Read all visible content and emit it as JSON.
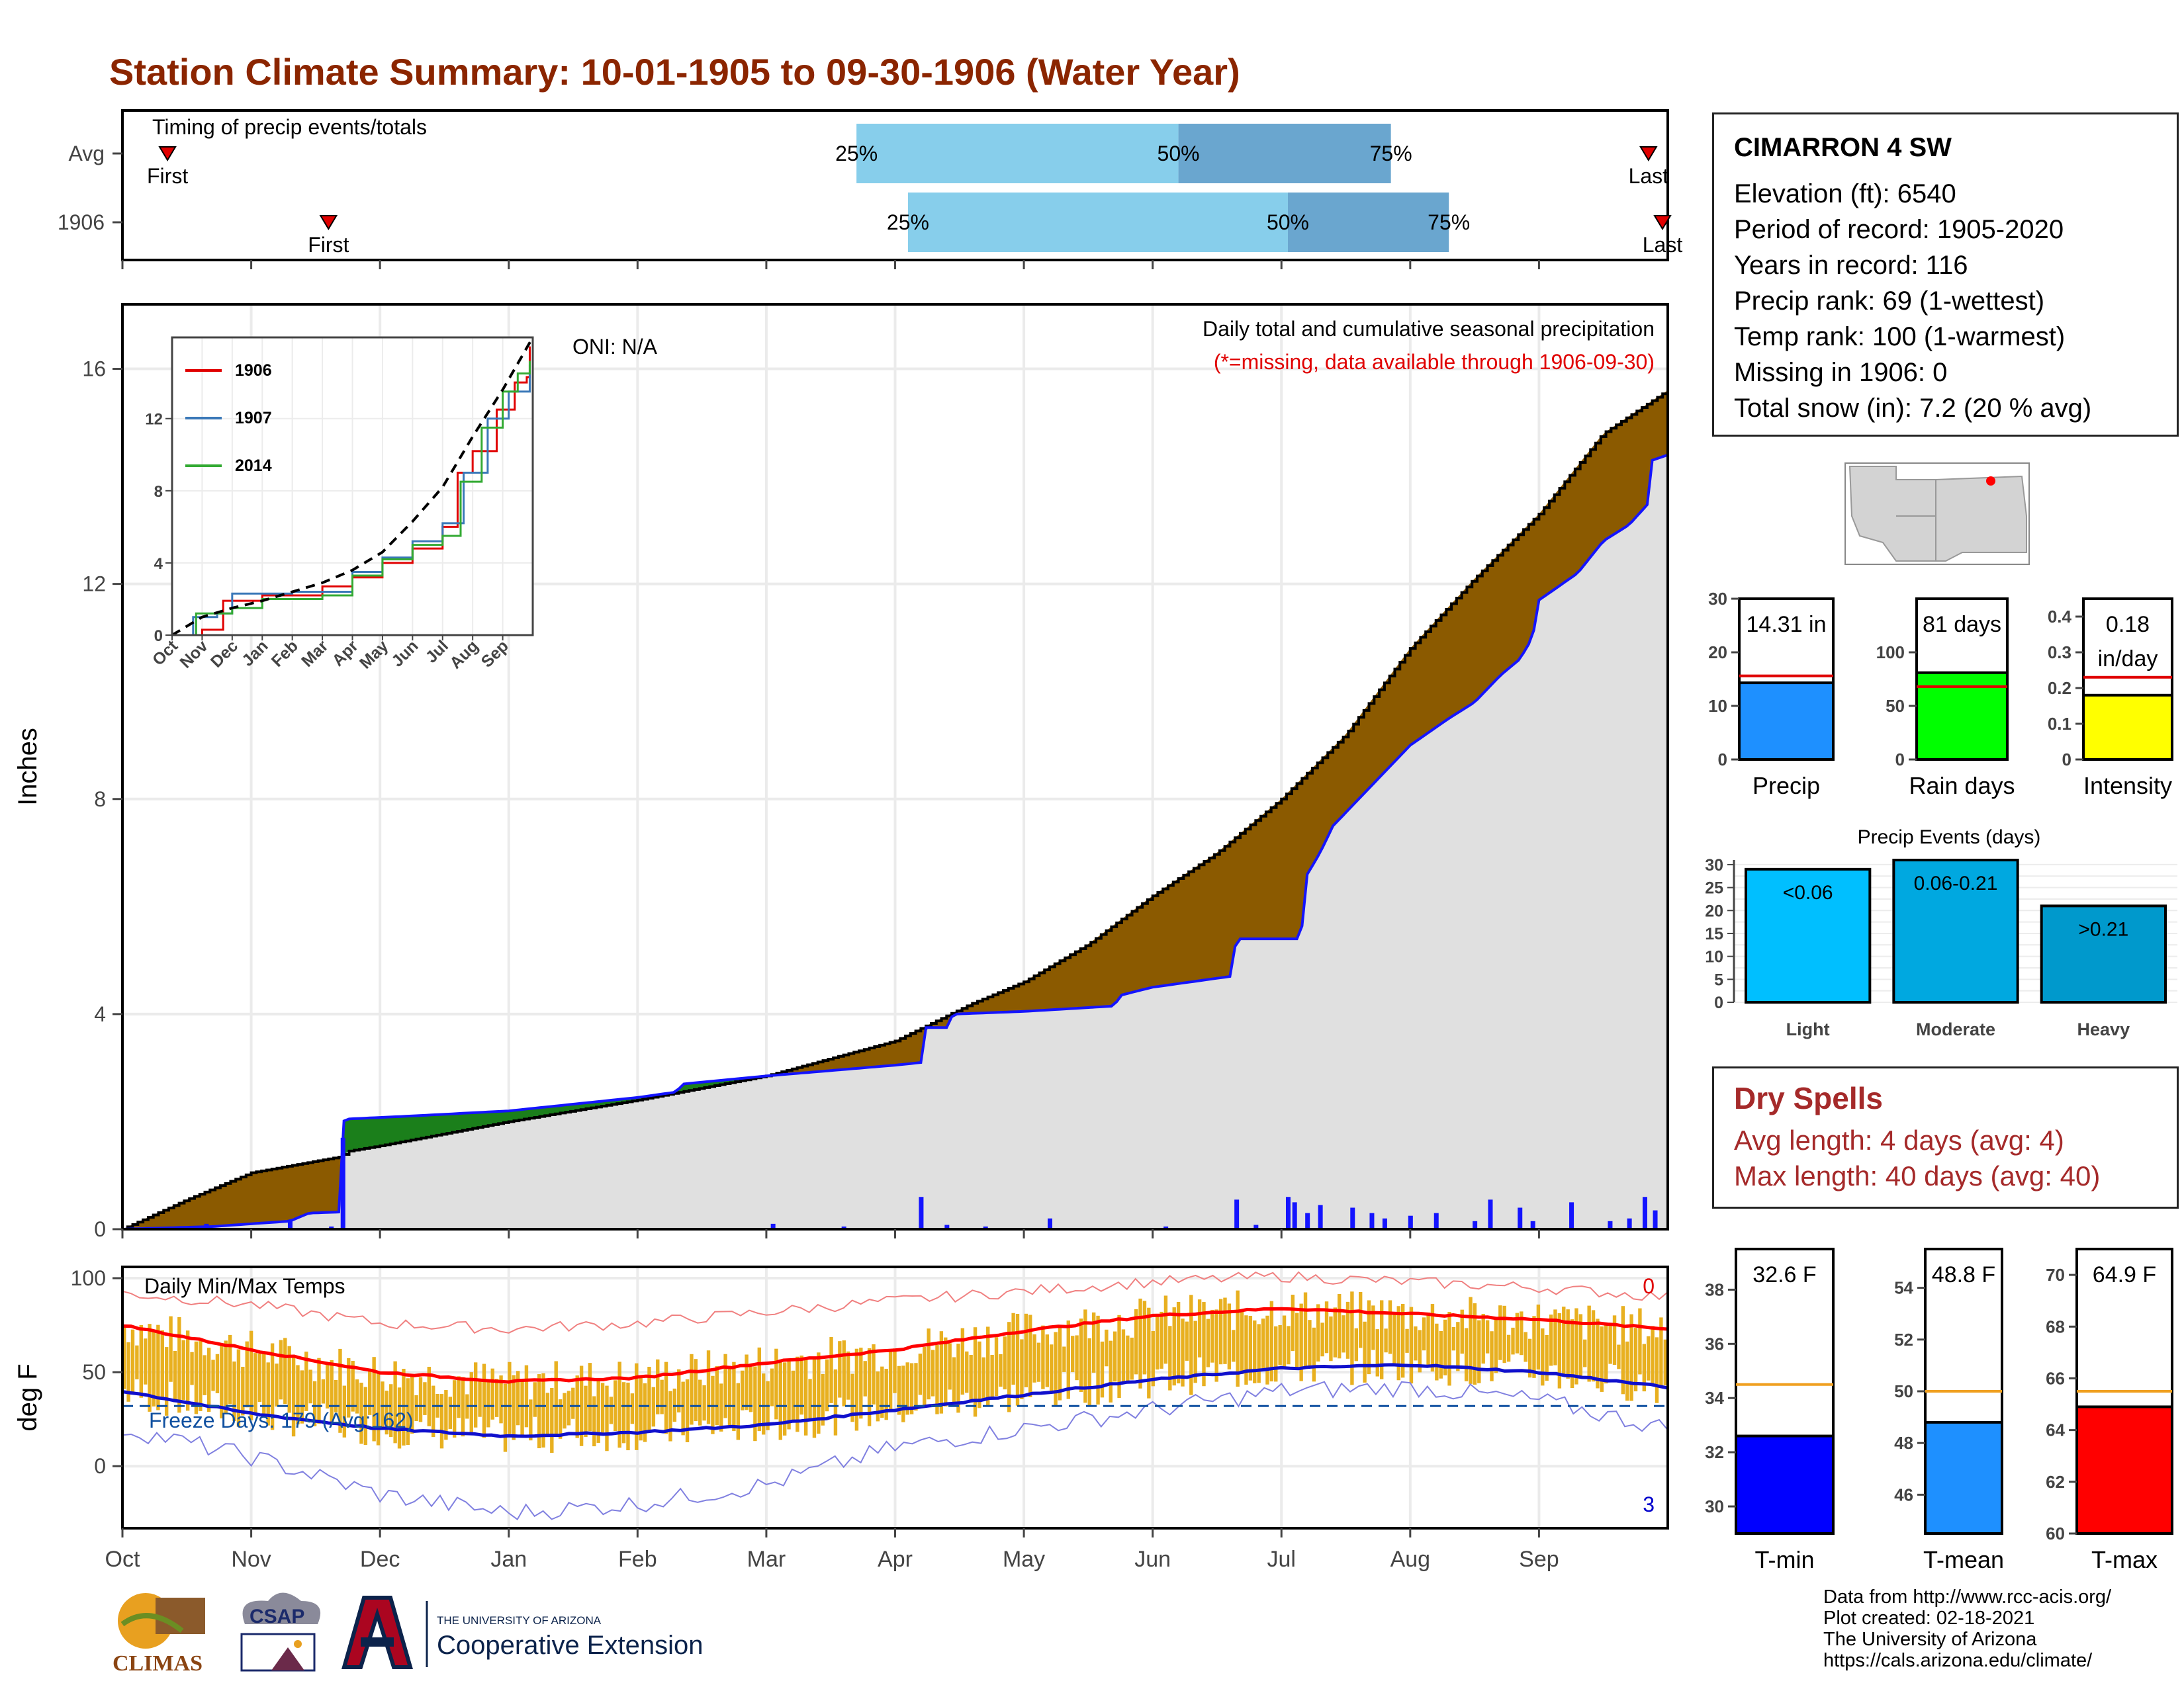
{
  "page_title": "Station Climate Summary: 10-01-1905 to 09-30-1906 (Water Year)",
  "colors": {
    "title": "#8b2500",
    "cumulative_fill": "#8b5a00",
    "normal_fill": "#e0e0e0",
    "deficit_fill": "#1b7f1b",
    "daily_bars": "#1414ff",
    "avg_line": "#e00000",
    "timing_light": "#87ceeb",
    "timing_dark": "#6aa6cf",
    "temp_bars": "#e8b020",
    "max_mean_line": "#ff0000",
    "min_mean_line": "#1010cc",
    "dry_spells": "#a52a2a",
    "avg_reference": "#f0a020"
  },
  "station": {
    "name": "CIMARRON 4 SW",
    "rows": [
      "Elevation (ft): 6540",
      "Period of record: 1905-2020",
      "Years in record: 116",
      "Precip rank: 69 (1-wettest)",
      "Temp rank: 100 (1-warmest)",
      "Missing in 1906: 0",
      "Total snow (in): 7.2 (20 % avg)"
    ]
  },
  "dry_spells": {
    "title": "Dry Spells",
    "avg_length": "Avg length: 4 days (avg: 4)",
    "max_length": "Max length: 40 days (avg: 40)"
  },
  "credits": [
    "Data from http://www.rcc-acis.org/",
    "Plot created: 02-18-2021",
    "The University of Arizona",
    "https://cals.arizona.edu/climate/"
  ],
  "logos": {
    "climas": "CLIMAS",
    "csap": "CSAP",
    "ua_line1": "THE UNIVERSITY OF ARIZONA",
    "ua_line2": "Cooperative Extension"
  },
  "chart_data": [
    {
      "type": "bar",
      "title": "Timing of precip events/totals",
      "rows": [
        "Avg",
        "1906"
      ],
      "first_event_month": [
        0.35,
        1.6
      ],
      "last_event_month": [
        11.85,
        11.98
      ],
      "quantiles": [
        {
          "row": "Avg",
          "p25_month": 5.7,
          "p50_month": 8.2,
          "p75_month": 9.85
        },
        {
          "row": "1906",
          "p25_month": 6.1,
          "p50_month": 9.05,
          "p75_month": 10.3
        }
      ],
      "labels": {
        "first": "First",
        "last": "Last",
        "q25": "25%",
        "q50": "50%",
        "q75": "75%"
      }
    },
    {
      "type": "area",
      "title": "Daily total and cumulative seasonal precipitation",
      "subtitle": "(*=missing, data available through 1906-09-30)",
      "annotation": "ONI: N/A",
      "ylabel": "Inches",
      "ylim": [
        0,
        17.2
      ],
      "yticks": [
        0,
        4,
        8,
        12,
        16
      ],
      "months": [
        "Oct",
        "Nov",
        "Dec",
        "Jan",
        "Feb",
        "Mar",
        "Apr",
        "May",
        "Jun",
        "Jul",
        "Aug",
        "Sep"
      ],
      "avg_cumulative": [
        [
          0,
          0
        ],
        [
          0.5,
          0.55
        ],
        [
          1,
          1.05
        ],
        [
          1.7,
          1.35
        ],
        [
          1.75,
          1.45
        ],
        [
          2,
          1.55
        ],
        [
          3,
          2.0
        ],
        [
          4,
          2.4
        ],
        [
          5,
          2.85
        ],
        [
          6,
          3.5
        ],
        [
          6.6,
          4.2
        ],
        [
          7,
          4.6
        ],
        [
          7.5,
          5.3
        ],
        [
          8,
          6.2
        ],
        [
          8.5,
          7.0
        ],
        [
          9,
          8.0
        ],
        [
          9.5,
          9.2
        ],
        [
          10,
          10.8
        ],
        [
          10.5,
          12.1
        ],
        [
          11,
          13.3
        ],
        [
          11.5,
          14.8
        ],
        [
          12,
          15.6
        ]
      ],
      "year_cumulative": [
        [
          0,
          0
        ],
        [
          0.7,
          0.05
        ],
        [
          1.3,
          0.15
        ],
        [
          1.45,
          0.3
        ],
        [
          1.7,
          0.32
        ],
        [
          1.71,
          2.0
        ],
        [
          1.75,
          2.05
        ],
        [
          2.2,
          2.1
        ],
        [
          3,
          2.2
        ],
        [
          4,
          2.45
        ],
        [
          4.3,
          2.55
        ],
        [
          4.35,
          2.7
        ],
        [
          5,
          2.85
        ],
        [
          6,
          3.05
        ],
        [
          6.2,
          3.1
        ],
        [
          6.22,
          3.75
        ],
        [
          6.4,
          3.75
        ],
        [
          6.45,
          4.0
        ],
        [
          7,
          4.05
        ],
        [
          7.7,
          4.15
        ],
        [
          7.75,
          4.35
        ],
        [
          8,
          4.5
        ],
        [
          8.6,
          4.7
        ],
        [
          8.65,
          5.4
        ],
        [
          9,
          5.4
        ],
        [
          9.15,
          5.4
        ],
        [
          9.2,
          6.6
        ],
        [
          9.3,
          7.0
        ],
        [
          9.4,
          7.5
        ],
        [
          9.6,
          8.0
        ],
        [
          9.8,
          8.5
        ],
        [
          10,
          9.0
        ],
        [
          10.3,
          9.5
        ],
        [
          10.5,
          9.8
        ],
        [
          10.7,
          10.3
        ],
        [
          10.85,
          10.6
        ],
        [
          10.95,
          11.0
        ],
        [
          11,
          11.7
        ],
        [
          11.3,
          12.2
        ],
        [
          11.5,
          12.8
        ],
        [
          11.7,
          13.1
        ],
        [
          11.85,
          13.5
        ],
        [
          11.88,
          14.3
        ],
        [
          12,
          14.4
        ]
      ],
      "daily_precip_events": [
        [
          0.65,
          0.1
        ],
        [
          1.3,
          0.15
        ],
        [
          1.62,
          0.05
        ],
        [
          1.71,
          1.7
        ],
        [
          5.05,
          0.1
        ],
        [
          5.6,
          0.05
        ],
        [
          6.2,
          0.6
        ],
        [
          6.4,
          0.08
        ],
        [
          6.7,
          0.05
        ],
        [
          7.2,
          0.2
        ],
        [
          8.1,
          0.05
        ],
        [
          8.65,
          0.55
        ],
        [
          8.8,
          0.08
        ],
        [
          9.05,
          0.6
        ],
        [
          9.1,
          0.5
        ],
        [
          9.2,
          0.3
        ],
        [
          9.3,
          0.45
        ],
        [
          9.55,
          0.4
        ],
        [
          9.7,
          0.3
        ],
        [
          9.8,
          0.2
        ],
        [
          10.0,
          0.25
        ],
        [
          10.2,
          0.3
        ],
        [
          10.5,
          0.15
        ],
        [
          10.62,
          0.55
        ],
        [
          10.85,
          0.4
        ],
        [
          10.95,
          0.15
        ],
        [
          11.25,
          0.5
        ],
        [
          11.55,
          0.15
        ],
        [
          11.7,
          0.2
        ],
        [
          11.82,
          0.6
        ],
        [
          11.9,
          0.35
        ]
      ],
      "inset": {
        "type": "line",
        "ylim": [
          0,
          16.5
        ],
        "yticks": [
          0,
          4,
          8,
          12
        ],
        "months": [
          "Oct",
          "Nov",
          "Dec",
          "Jan",
          "Feb",
          "Mar",
          "Apr",
          "May",
          "Jun",
          "Jul",
          "Aug",
          "Sep"
        ],
        "series": [
          {
            "name": "1906",
            "color": "#e00000",
            "values": [
              [
                0,
                0
              ],
              [
                1,
                0.3
              ],
              [
                1.7,
                1.9
              ],
              [
                3,
                2.2
              ],
              [
                5,
                2.7
              ],
              [
                6,
                3.2
              ],
              [
                7,
                4.0
              ],
              [
                8,
                4.8
              ],
              [
                9,
                6.0
              ],
              [
                9.5,
                9.0
              ],
              [
                10,
                10.2
              ],
              [
                10.8,
                12.5
              ],
              [
                11.4,
                14.0
              ],
              [
                11.8,
                14.3
              ],
              [
                11.9,
                16.0
              ]
            ]
          },
          {
            "name": "1907",
            "color": "#3a78b8",
            "values": [
              [
                0,
                0
              ],
              [
                0.7,
                1.0
              ],
              [
                1.5,
                1.2
              ],
              [
                2,
                2.3
              ],
              [
                4,
                2.4
              ],
              [
                5,
                2.4
              ],
              [
                6,
                3.5
              ],
              [
                7,
                4.3
              ],
              [
                8,
                5.2
              ],
              [
                9,
                6.2
              ],
              [
                9.7,
                9.0
              ],
              [
                10.5,
                12.0
              ],
              [
                11.2,
                13.5
              ],
              [
                11.9,
                15.0
              ]
            ]
          },
          {
            "name": "2014",
            "color": "#33aa33",
            "values": [
              [
                0,
                0
              ],
              [
                0.8,
                1.2
              ],
              [
                2,
                1.5
              ],
              [
                3,
                2.0
              ],
              [
                5,
                2.2
              ],
              [
                6,
                3.3
              ],
              [
                7,
                4.2
              ],
              [
                8,
                5.0
              ],
              [
                9,
                5.5
              ],
              [
                9.6,
                8.5
              ],
              [
                10.3,
                11.5
              ],
              [
                11,
                13.5
              ],
              [
                11.5,
                14.5
              ],
              [
                11.9,
                15.2
              ]
            ]
          },
          {
            "name": "",
            "color": "#000000",
            "dashed": true,
            "values": [
              [
                0,
                0
              ],
              [
                1,
                1.0
              ],
              [
                2,
                1.5
              ],
              [
                3,
                1.9
              ],
              [
                4,
                2.4
              ],
              [
                5,
                2.9
              ],
              [
                6,
                3.6
              ],
              [
                7,
                4.6
              ],
              [
                8,
                6.3
              ],
              [
                9,
                8.2
              ],
              [
                10,
                11.0
              ],
              [
                11,
                13.6
              ],
              [
                12,
                16.5
              ]
            ]
          }
        ]
      }
    },
    {
      "type": "bar",
      "panels": [
        {
          "xlabel": "Precip",
          "ylim": [
            0,
            30
          ],
          "yticks": [
            0,
            10,
            20,
            30
          ],
          "value": 14.31,
          "avg": 15.6,
          "bar_color": "#1e90ff",
          "label_lines": [
            "14.31 in"
          ]
        },
        {
          "xlabel": "Rain days",
          "ylim": [
            0,
            150
          ],
          "yticks": [
            0,
            50,
            100
          ],
          "value": 81,
          "avg": 68,
          "bar_color": "#00ff00",
          "label_lines": [
            "81 days"
          ]
        },
        {
          "xlabel": "Intensity",
          "ylim": [
            0,
            0.45
          ],
          "yticks": [
            0.0,
            0.1,
            0.2,
            0.3,
            0.4
          ],
          "value": 0.18,
          "avg": 0.23,
          "bar_color": "#ffff00",
          "label_lines": [
            "0.18",
            "in/day"
          ]
        }
      ]
    },
    {
      "type": "bar",
      "title": "Precip Events (days)",
      "categories": [
        "Light",
        "Moderate",
        "Heavy"
      ],
      "values": [
        29,
        31,
        21
      ],
      "bar_labels": [
        "<0.06",
        "0.06-0.21",
        ">0.21"
      ],
      "ylim": [
        0,
        31
      ],
      "yticks": [
        0,
        5,
        10,
        15,
        20,
        25,
        30
      ],
      "colors": [
        "#00bfff",
        "#00a8e0",
        "#0099cc"
      ]
    },
    {
      "type": "bar",
      "title": "Daily Min/Max Temps",
      "ylabel": "deg F",
      "ylim": [
        -33,
        106
      ],
      "yticks": [
        0,
        50,
        100
      ],
      "months": [
        "Oct",
        "Nov",
        "Dec",
        "Jan",
        "Feb",
        "Mar",
        "Apr",
        "May",
        "Jun",
        "Jul",
        "Aug",
        "Sep"
      ],
      "annotation": "Freeze Days: 179 (Avg:162)",
      "count_high": "0",
      "count_low": "3",
      "freeze_line": 32,
      "max_mean": [
        [
          0,
          75
        ],
        [
          1,
          62
        ],
        [
          2,
          50
        ],
        [
          3,
          45
        ],
        [
          4,
          47
        ],
        [
          5,
          55
        ],
        [
          6,
          62
        ],
        [
          7,
          72
        ],
        [
          8,
          80
        ],
        [
          9,
          84
        ],
        [
          10,
          81
        ],
        [
          11,
          78
        ],
        [
          12,
          73
        ]
      ],
      "min_mean": [
        [
          0,
          40
        ],
        [
          1,
          28
        ],
        [
          2,
          20
        ],
        [
          3,
          16
        ],
        [
          4,
          18
        ],
        [
          5,
          22
        ],
        [
          6,
          30
        ],
        [
          7,
          38
        ],
        [
          8,
          46
        ],
        [
          9,
          52
        ],
        [
          10,
          54
        ],
        [
          11,
          50
        ],
        [
          12,
          42
        ]
      ],
      "max_record": [
        [
          0,
          92
        ],
        [
          1,
          86
        ],
        [
          2,
          76
        ],
        [
          3,
          73
        ],
        [
          4,
          76
        ],
        [
          5,
          82
        ],
        [
          6,
          88
        ],
        [
          7,
          93
        ],
        [
          8,
          98
        ],
        [
          9,
          101
        ],
        [
          10,
          98
        ],
        [
          11,
          95
        ],
        [
          12,
          90
        ]
      ],
      "min_record": [
        [
          0,
          20
        ],
        [
          1,
          5
        ],
        [
          2,
          -15
        ],
        [
          3,
          -25
        ],
        [
          4,
          -20
        ],
        [
          5,
          -10
        ],
        [
          6,
          10
        ],
        [
          7,
          20
        ],
        [
          8,
          30
        ],
        [
          9,
          40
        ],
        [
          10,
          42
        ],
        [
          11,
          35
        ],
        [
          12,
          20
        ]
      ]
    },
    {
      "type": "bar",
      "panels": [
        {
          "xlabel": "T-min",
          "ylim": [
            29,
            39.5
          ],
          "yticks": [
            30,
            32,
            34,
            36,
            38
          ],
          "value": 32.6,
          "avg": 34.5,
          "bar_color": "#0000ff",
          "label_lines": [
            "32.6 F"
          ]
        },
        {
          "xlabel": "T-mean",
          "ylim": [
            44.5,
            55.5
          ],
          "yticks": [
            46,
            48,
            50,
            52,
            54
          ],
          "value": 48.8,
          "avg": 50.0,
          "bar_color": "#1e90ff",
          "label_lines": [
            "48.8 F"
          ]
        },
        {
          "xlabel": "T-max",
          "ylim": [
            60,
            71
          ],
          "yticks": [
            60,
            62,
            64,
            66,
            68,
            70
          ],
          "value": 64.9,
          "avg": 65.5,
          "bar_color": "#ff0000",
          "label_lines": [
            "64.9 F"
          ]
        }
      ]
    }
  ]
}
